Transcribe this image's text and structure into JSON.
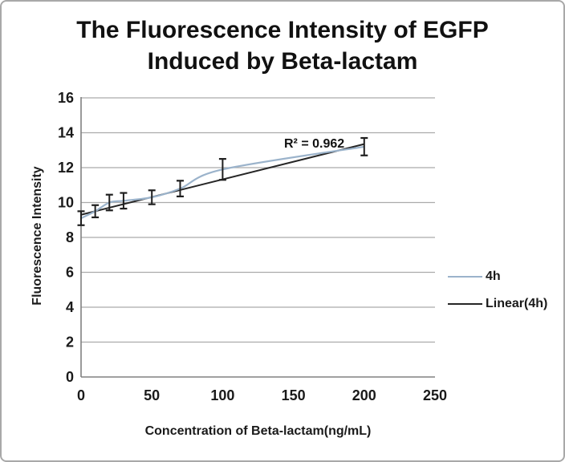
{
  "chart_data": {
    "type": "line",
    "title": "The Fluorescence Intensity of EGFP Induced by Beta-lactam",
    "title_lines": [
      "The Fluorescence Intensity of EGFP",
      "Induced by Beta-lactam"
    ],
    "xlabel": "Concentration of Beta-lactam(ng/mL)",
    "ylabel": "Fluorescence Intensity",
    "xlim": [
      0,
      250
    ],
    "ylim": [
      0,
      16
    ],
    "x_ticks": [
      0,
      50,
      100,
      150,
      200,
      250
    ],
    "y_ticks": [
      0,
      2,
      4,
      6,
      8,
      10,
      12,
      14,
      16
    ],
    "grid": "horizontal",
    "annotation": "R² = 0.962",
    "legend_position": "right",
    "legend": {
      "entries": [
        {
          "label": "4h"
        },
        {
          "label": "Linear(4h)"
        }
      ]
    },
    "series": [
      {
        "name": "4h",
        "type": "smooth-line-with-error-bars",
        "color": "#9bb3cb",
        "x": [
          0,
          10,
          20,
          30,
          50,
          70,
          100,
          200
        ],
        "y": [
          9.1,
          9.5,
          10.0,
          10.1,
          10.3,
          10.8,
          11.9,
          13.2
        ],
        "error_y": [
          0.4,
          0.35,
          0.45,
          0.45,
          0.4,
          0.45,
          0.6,
          0.5
        ]
      },
      {
        "name": "Linear(4h)",
        "type": "linear-trendline",
        "color": "#262626",
        "x": [
          0,
          200
        ],
        "y": [
          9.3,
          13.35
        ]
      }
    ],
    "colors": {
      "gridline": "#ababab",
      "axis": "#808080",
      "error_bar": "#1f1f1f",
      "tick_text": "#1a1a1a",
      "frame_border": "#a8a8a8"
    }
  }
}
